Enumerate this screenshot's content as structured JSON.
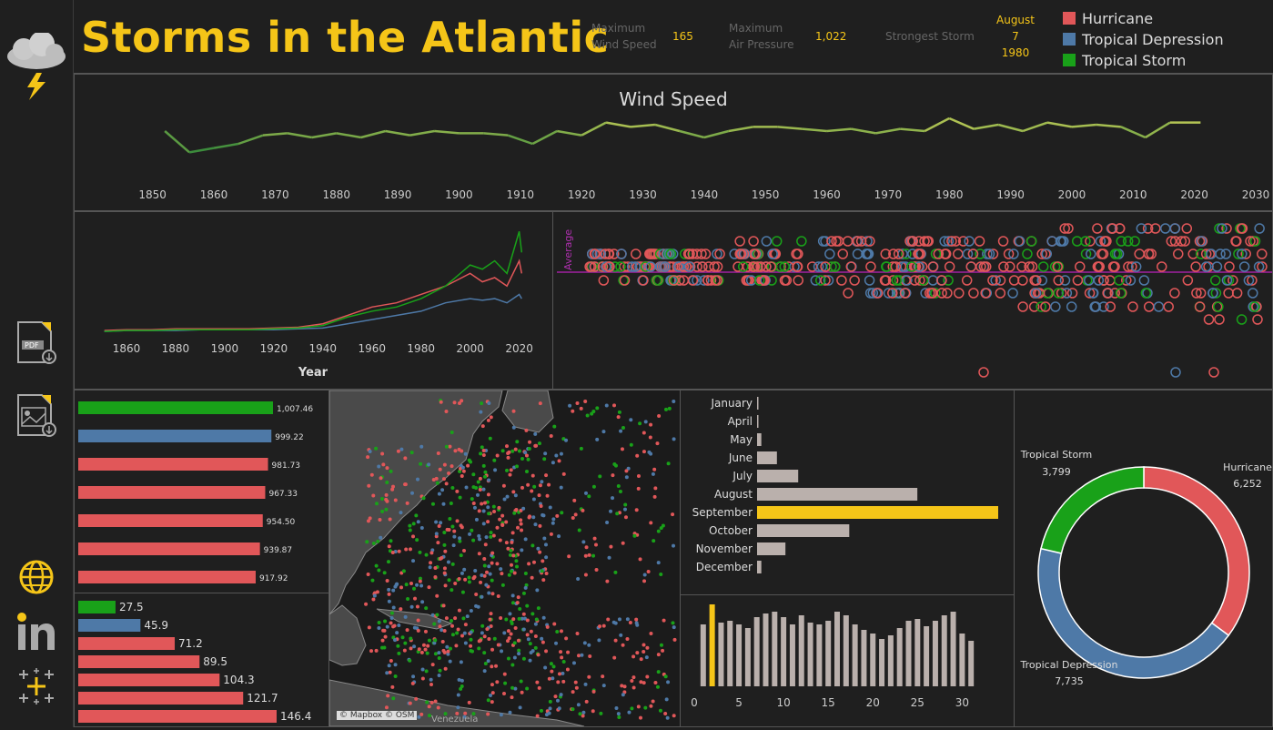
{
  "header": {
    "title": "Storms in the Atlantic",
    "kpi_max_wind_label_1": "Maximum",
    "kpi_max_wind_label_2": "Wind Speed",
    "kpi_max_wind_value": "165",
    "kpi_max_pressure_label_1": "Maximum",
    "kpi_max_pressure_label_2": "Air Pressure",
    "kpi_max_pressure_value": "1,022",
    "kpi_strongest_label": "Strongest Storm",
    "kpi_strongest_month": "August",
    "kpi_strongest_day": "7",
    "kpi_strongest_year": "1980"
  },
  "legend": [
    {
      "label": "Hurricane",
      "color": "#e15759"
    },
    {
      "label": "Tropical Depression",
      "color": "#4e79a7"
    },
    {
      "label": "Tropical Storm",
      "color": "#19a119"
    }
  ],
  "sidebar": {
    "icons": [
      "storm-cloud-icon",
      "pdf-download-icon",
      "image-download-icon",
      "globe-icon",
      "linkedin-icon",
      "tableau-icon"
    ]
  },
  "map": {
    "attribution": "© Mapbox © OSM",
    "label_venezuela": "Venezuela"
  },
  "chart_data": [
    {
      "id": "wind_speed_line",
      "type": "line",
      "title": "Wind Speed",
      "xlim": [
        1845,
        2030
      ],
      "x_ticks": [
        1850,
        1860,
        1870,
        1880,
        1890,
        1900,
        1910,
        1920,
        1930,
        1940,
        1950,
        1960,
        1970,
        1980,
        1990,
        2000,
        2010,
        2020,
        2030
      ],
      "x": [
        1852,
        1856,
        1860,
        1864,
        1868,
        1872,
        1876,
        1880,
        1884,
        1888,
        1892,
        1896,
        1900,
        1904,
        1908,
        1912,
        1916,
        1920,
        1924,
        1928,
        1932,
        1936,
        1940,
        1944,
        1948,
        1952,
        1956,
        1960,
        1964,
        1968,
        1972,
        1976,
        1980,
        1984,
        1988,
        1992,
        1996,
        2000,
        2004,
        2008,
        2012,
        2016,
        2021
      ],
      "values": [
        58,
        48,
        50,
        52,
        56,
        57,
        55,
        57,
        55,
        58,
        56,
        58,
        57,
        57,
        56,
        52,
        58,
        56,
        62,
        60,
        61,
        58,
        55,
        58,
        60,
        60,
        59,
        58,
        59,
        57,
        59,
        58,
        64,
        59,
        61,
        58,
        62,
        60,
        61,
        60,
        55,
        62,
        62
      ],
      "ylim": [
        40,
        70
      ]
    },
    {
      "id": "storm_counts_by_year",
      "type": "line",
      "xlabel": "Year",
      "xlim": [
        1850,
        2022
      ],
      "x_ticks": [
        1860,
        1880,
        1900,
        1920,
        1940,
        1960,
        1980,
        2000,
        2020
      ],
      "x": [
        1851,
        1860,
        1870,
        1880,
        1890,
        1900,
        1910,
        1920,
        1930,
        1940,
        1950,
        1960,
        1970,
        1980,
        1990,
        2000,
        2005,
        2010,
        2015,
        2020,
        2021
      ],
      "series": [
        {
          "values": [
            2,
            3,
            3,
            4,
            4,
            4,
            4,
            5,
            6,
            10,
            20,
            30,
            35,
            45,
            55,
            70,
            60,
            65,
            55,
            85,
            70
          ]
        },
        {
          "values": [
            1,
            2,
            2,
            2,
            3,
            3,
            3,
            3,
            4,
            5,
            10,
            15,
            20,
            25,
            35,
            40,
            38,
            40,
            35,
            45,
            40
          ]
        },
        {
          "values": [
            1,
            2,
            2,
            3,
            3,
            3,
            3,
            4,
            5,
            8,
            18,
            25,
            30,
            40,
            55,
            80,
            75,
            85,
            70,
            120,
            95
          ]
        }
      ],
      "ylim": [
        0,
        130
      ]
    },
    {
      "id": "category_dot_plot",
      "type": "scatter",
      "reference_line": "Average"
    },
    {
      "id": "avg_pressure_bars",
      "type": "bar",
      "orientation": "horizontal",
      "values": [
        1007.46,
        999.22,
        981.73,
        967.33,
        954.5,
        939.87,
        917.92
      ],
      "labels": [
        "1,007.46",
        "999.22",
        "981.73",
        "967.33",
        "954.50",
        "939.87",
        "917.92"
      ],
      "colors": [
        "#19a119",
        "#4e79a7",
        "#e15759",
        "#e15759",
        "#e15759",
        "#e15759",
        "#e15759"
      ],
      "xlim": [
        0,
        1007.46
      ]
    },
    {
      "id": "avg_wind_bars",
      "type": "bar",
      "orientation": "horizontal",
      "values": [
        27.5,
        45.9,
        71.2,
        89.5,
        104.3,
        121.7,
        146.4
      ],
      "labels": [
        "27.5",
        "45.9",
        "71.2",
        "89.5",
        "104.3",
        "121.7",
        "146.4"
      ],
      "colors": [
        "#19a119",
        "#4e79a7",
        "#e15759",
        "#e15759",
        "#e15759",
        "#e15759",
        "#e15759"
      ],
      "xlim": [
        0,
        146.4
      ]
    },
    {
      "id": "storms_by_month",
      "type": "bar",
      "orientation": "horizontal",
      "categories": [
        "January",
        "April",
        "May",
        "June",
        "July",
        "August",
        "September",
        "October",
        "November",
        "December"
      ],
      "values": [
        1,
        2,
        30,
        140,
        290,
        1130,
        1700,
        650,
        200,
        30
      ],
      "highlight": "September",
      "colors": {
        "default": "#bab0ac",
        "highlight": "#f5c518"
      },
      "xlim": [
        0,
        1700
      ]
    },
    {
      "id": "storms_by_day",
      "type": "bar",
      "x": [
        1,
        2,
        3,
        4,
        5,
        6,
        7,
        8,
        9,
        10,
        11,
        12,
        13,
        14,
        15,
        16,
        17,
        18,
        19,
        20,
        21,
        22,
        23,
        24,
        25,
        26,
        27,
        28,
        29,
        30,
        31
      ],
      "values": [
        68,
        90,
        70,
        72,
        68,
        64,
        76,
        80,
        82,
        76,
        68,
        78,
        70,
        68,
        72,
        82,
        78,
        68,
        62,
        58,
        52,
        56,
        64,
        72,
        74,
        66,
        72,
        78,
        82,
        58,
        50
      ],
      "highlight_x": 2,
      "x_ticks": [
        0,
        5,
        10,
        15,
        20,
        25,
        30
      ],
      "xlim": [
        0,
        32
      ],
      "ylim": [
        0,
        90
      ],
      "colors": {
        "default": "#bab0ac",
        "highlight": "#f5c518"
      }
    },
    {
      "id": "storm_type_donut",
      "type": "pie",
      "categories": [
        "Hurricane",
        "Tropical Depression",
        "Tropical Storm"
      ],
      "values": [
        6252,
        7735,
        3799
      ],
      "labels": [
        "6,252",
        "7,735",
        "3,799"
      ],
      "colors": [
        "#e15759",
        "#4e79a7",
        "#19a119"
      ]
    }
  ]
}
